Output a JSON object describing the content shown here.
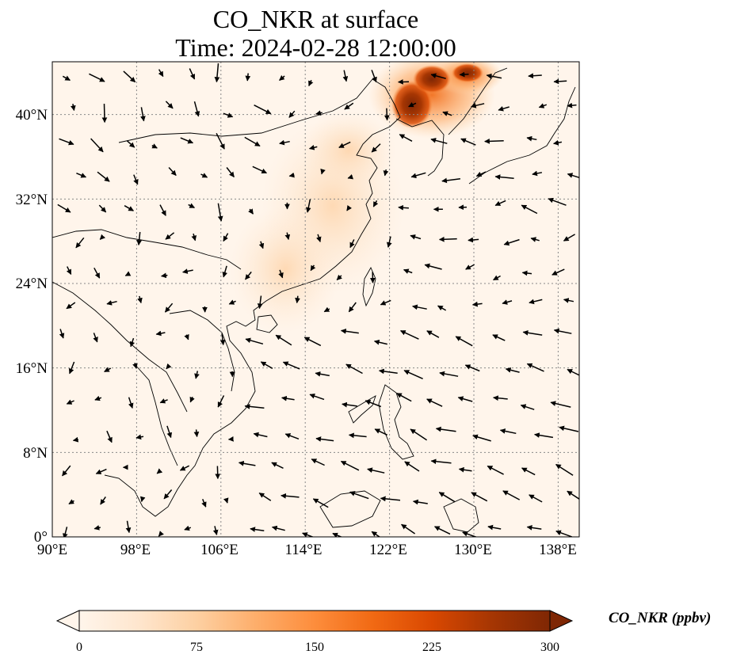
{
  "title": {
    "line1": "CO_NKR at surface",
    "line2": "Time: 2024-02-28 12:00:00"
  },
  "axes": {
    "lon_ticks": [
      "90°E",
      "98°E",
      "106°E",
      "114°E",
      "122°E",
      "130°E",
      "138°E"
    ],
    "lat_ticks": [
      "0°",
      "8°N",
      "16°N",
      "24°N",
      "32°N",
      "40°N"
    ],
    "lon_range": [
      90,
      140
    ],
    "lat_range": [
      0,
      45
    ]
  },
  "colorbar": {
    "label": "CO_NKR (ppbv)",
    "ticks": [
      "0",
      "75",
      "150",
      "225",
      "300"
    ],
    "range": [
      0,
      300
    ],
    "colormap": [
      "#fff5eb",
      "#fee6ce",
      "#fdd0a2",
      "#fdae6b",
      "#fd8d3c",
      "#f16913",
      "#d94801",
      "#a63603",
      "#7f2704"
    ],
    "extend": "both"
  },
  "colors": {
    "background_field": "#fff5eb",
    "coastline": "#000000",
    "gridline": "#888888"
  }
}
